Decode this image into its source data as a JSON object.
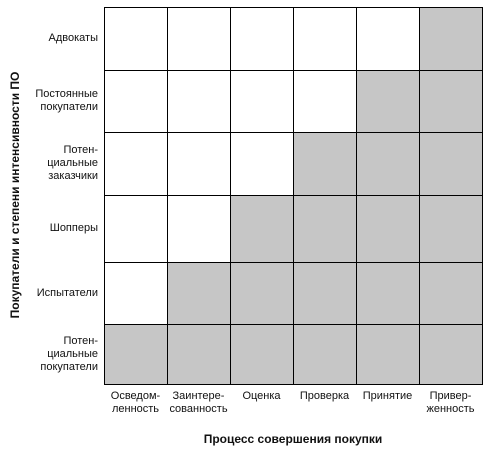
{
  "x_axis_title": "Процесс совершения покупки",
  "y_axis_title": "Покупатели и степени интенсивности ПО",
  "columns": [
    "Осведом-\nленность",
    "Заинтере-\nсованность",
    "Оценка",
    "Проверка",
    "Принятие",
    "Привер-\nженность"
  ],
  "rows": [
    "Адвокаты",
    "Постоянные\nпокупатели",
    "Потен-\nциальные\nзаказчики",
    "Шопперы",
    "Испытатели",
    "Потен-\nциальные\nпокупатели"
  ],
  "filled_from_column": [
    5,
    4,
    3,
    2,
    1,
    0
  ],
  "colors": {
    "filled": "#c6c6c6",
    "empty": "#ffffff",
    "border": "#000000"
  }
}
